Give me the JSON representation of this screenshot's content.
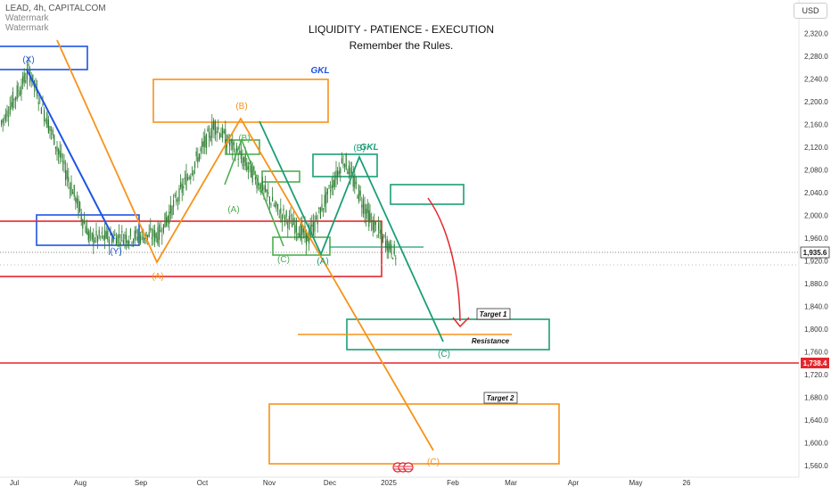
{
  "header": {
    "symbol_line": "LEAD, 4h, CAPITALCOM",
    "watermark_1": "Watermark",
    "watermark_2": "Watermark",
    "title": "LIQUIDITY - PATIENCE - EXECUTION",
    "subtitle": "Remember the Rules.",
    "currency_button": "USD"
  },
  "chart_data": {
    "type": "line",
    "title": "LIQUIDITY - PATIENCE - EXECUTION",
    "subtitle": "Remember the Rules.",
    "x_ticks": [
      "Jul",
      "Aug",
      "Sep",
      "Oct",
      "Nov",
      "Dec",
      "2025",
      "Feb",
      "Mar",
      "Apr",
      "May",
      "26"
    ],
    "y_ticks": [
      2320,
      2280,
      2240,
      2200,
      2160,
      2120,
      2080,
      2040,
      2000,
      1960,
      1920,
      1880,
      1840,
      1800,
      1760,
      1720,
      1680,
      1640,
      1600,
      1560
    ],
    "y_tick_labels": [
      "2,320.0",
      "2,280.0",
      "2,240.0",
      "2,200.0",
      "2,160.0",
      "2,120.0",
      "2,080.0",
      "2,040.0",
      "2,000.0",
      "1,960.0",
      "1,920.0",
      "1,880.0",
      "1,840.0",
      "1,800.0",
      "1,760.0",
      "1,720.0",
      "1,680.0",
      "1,640.0",
      "1,600.0",
      "1,560.0"
    ],
    "ylim": [
      1550,
      2345
    ],
    "price_series_approx": [
      [
        2175,
        2230,
        2255,
        2200,
        2100,
        2040,
        2000,
        1975,
        1960,
        1990,
        2030
      ],
      [
        2060,
        2100,
        2120,
        2080,
        2020,
        1980,
        1965,
        2000,
        2060,
        2120,
        2150
      ],
      [
        2160,
        2120,
        2080,
        2050,
        2060,
        2030,
        2000,
        1980,
        1965,
        1960,
        2010
      ],
      [
        2060,
        2090,
        2100,
        2070,
        2040,
        2020,
        2000,
        1975,
        1950,
        1935.6
      ]
    ],
    "current_price": 1935.6,
    "current_price_label": "1,935.6",
    "level_line": 1738.4,
    "level_line_label": "1,738.4",
    "annotations": [
      {
        "text": "(X)",
        "color": "#1e53e5"
      },
      {
        "text": "(Y)",
        "color": "#1e53e5"
      },
      {
        "text": "GKL",
        "color": "#1e53e5"
      },
      {
        "text": "(B)",
        "color": "#f7931a"
      },
      {
        "text": "(A)",
        "color": "#f7931a"
      },
      {
        "text": "(C)",
        "color": "#f7931a"
      },
      {
        "text": "(B)",
        "color": "#4caf50"
      },
      {
        "text": "(A)",
        "color": "#4caf50"
      },
      {
        "text": "(C)",
        "color": "#4caf50"
      },
      {
        "text": "(B)",
        "color": "#1b9e77"
      },
      {
        "text": "GKL",
        "color": "#1b9e77"
      },
      {
        "text": "(A)",
        "color": "#1b9e77"
      },
      {
        "text": "(C)",
        "color": "#1b9e77"
      },
      {
        "text": "Target 1",
        "color": "#111111"
      },
      {
        "text": "Resistance",
        "color": "#111111"
      },
      {
        "text": "Target 2",
        "color": "#111111"
      }
    ],
    "grid": false,
    "colors": {
      "candles": "#2e7d32",
      "blue": "#1e53e5",
      "orange": "#f7931a",
      "green": "#4caf50",
      "teal": "#1b9e77",
      "red": "#e5262c",
      "price_tag_bg": "#ffffff"
    }
  }
}
